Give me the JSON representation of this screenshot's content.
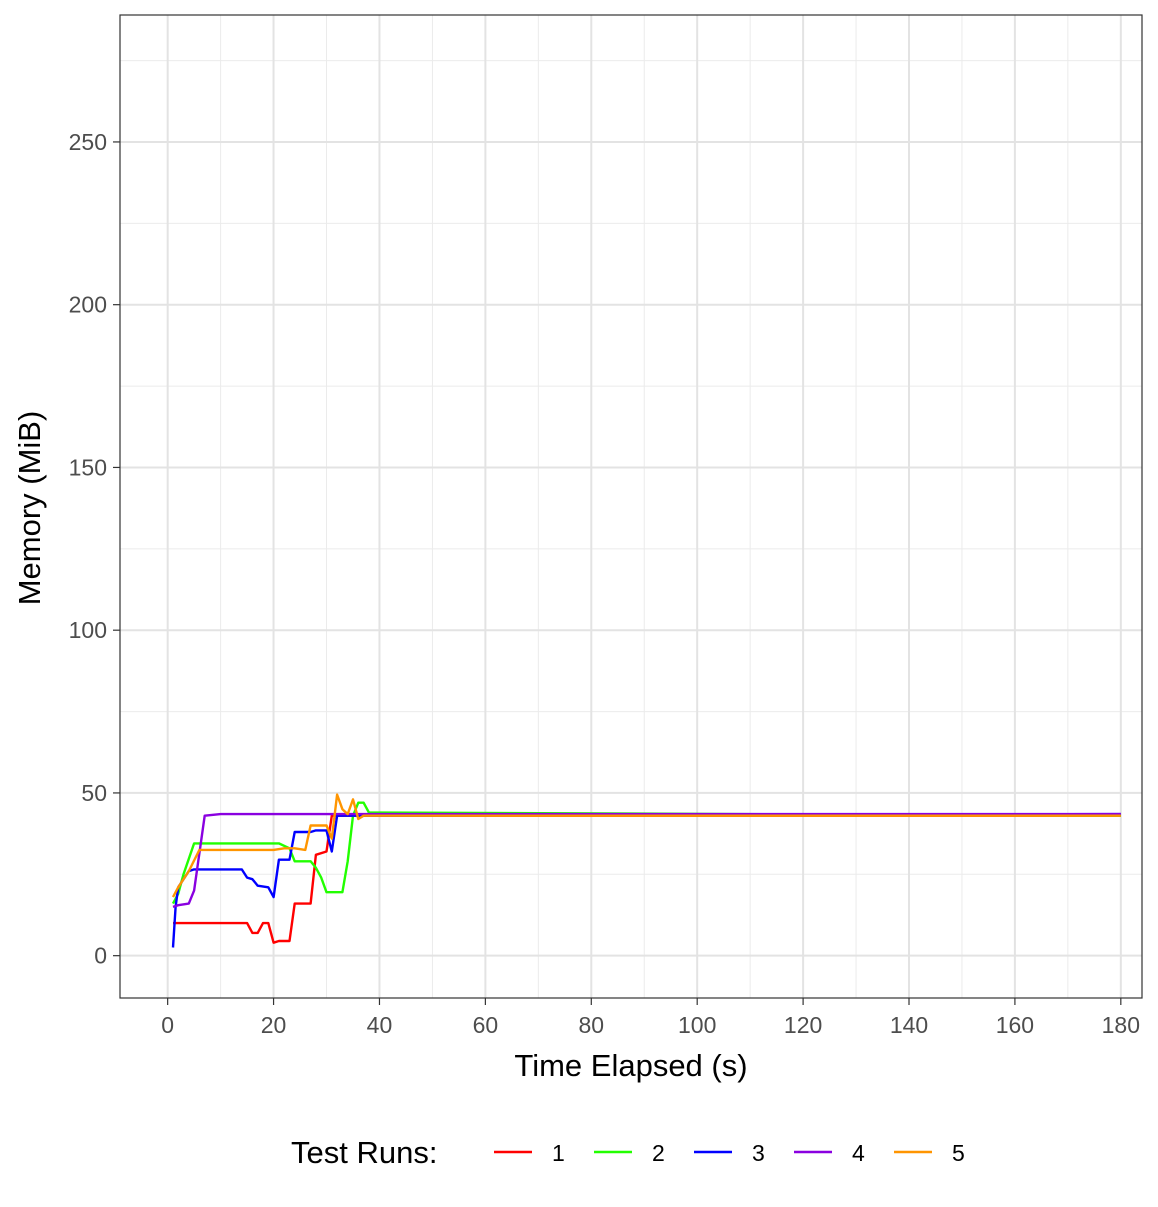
{
  "chart_data": {
    "type": "line",
    "title": "",
    "xlabel": "Time Elapsed (s)",
    "ylabel": "Memory (MiB)",
    "xlim": [
      -9,
      184
    ],
    "ylim": [
      -13,
      289
    ],
    "x_ticks": [
      0,
      20,
      40,
      60,
      80,
      100,
      120,
      140,
      160,
      180
    ],
    "y_ticks": [
      0,
      50,
      100,
      150,
      200,
      250
    ],
    "grid": true,
    "legend": {
      "title": "Test Runs:",
      "position": "bottom"
    },
    "series": [
      {
        "name": "1",
        "color": "#ff0000",
        "x": [
          1,
          2,
          15,
          16,
          17,
          18,
          19,
          20,
          21,
          23,
          24,
          26,
          27,
          28,
          30,
          31,
          32,
          33,
          180
        ],
        "y": [
          10,
          10,
          10,
          7,
          7,
          10,
          10,
          4,
          4.5,
          4.5,
          16,
          16,
          16,
          31,
          32,
          43,
          43,
          43,
          43
        ]
      },
      {
        "name": "2",
        "color": "#22ff00",
        "x": [
          1,
          2,
          3,
          5,
          20,
          21,
          23,
          24,
          27,
          28,
          29,
          30,
          31,
          32,
          33,
          34,
          35,
          36,
          37,
          38,
          180
        ],
        "y": [
          16,
          19,
          25,
          34.5,
          34.5,
          34.5,
          33,
          29,
          29,
          27,
          24,
          19.5,
          19.5,
          19.5,
          19.5,
          29,
          43,
          47,
          47,
          44,
          43
        ]
      },
      {
        "name": "3",
        "color": "#0000ff",
        "x": [
          1,
          1.5,
          2,
          4,
          5,
          10,
          14,
          15,
          16,
          17,
          19,
          20,
          21,
          23,
          24,
          27,
          28,
          30,
          31,
          32,
          33,
          180
        ],
        "y": [
          2.5,
          15,
          21,
          26,
          26.5,
          26.5,
          26.5,
          24,
          23.5,
          21.5,
          21,
          18,
          29.5,
          29.5,
          38,
          38,
          38.5,
          38.5,
          32,
          43,
          43,
          43.5
        ]
      },
      {
        "name": "4",
        "color": "#8a00e0",
        "x": [
          1,
          2,
          4,
          5,
          7,
          10,
          180
        ],
        "y": [
          15,
          15.5,
          16,
          20,
          43,
          43.5,
          43.5
        ]
      },
      {
        "name": "5",
        "color": "#ff9500",
        "x": [
          1,
          2,
          4,
          6,
          10,
          20,
          22,
          24,
          26,
          27,
          30,
          31,
          32,
          33,
          34,
          35,
          36,
          37,
          180
        ],
        "y": [
          18,
          21,
          26,
          32.5,
          32.5,
          32.5,
          33,
          33,
          32.5,
          40,
          40,
          36,
          49.5,
          45,
          43.5,
          48,
          42,
          43,
          43
        ]
      }
    ]
  }
}
